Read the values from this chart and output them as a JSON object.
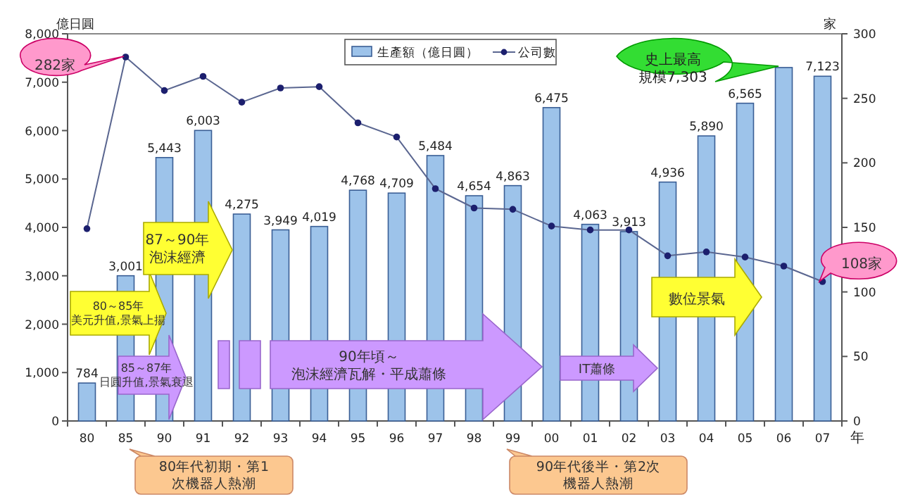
{
  "chart_data": {
    "type": "bar",
    "categories": [
      "80",
      "85",
      "90",
      "91",
      "92",
      "93",
      "94",
      "95",
      "96",
      "97",
      "98",
      "99",
      "00",
      "01",
      "02",
      "03",
      "04",
      "05",
      "06",
      "07"
    ],
    "series": [
      {
        "name": "生產額（億日圓）",
        "color": "#9dc3ea",
        "values": [
          784,
          3001,
          5443,
          6003,
          4275,
          3949,
          4019,
          4768,
          4709,
          5484,
          4654,
          4863,
          6475,
          4063,
          3913,
          4936,
          5890,
          6565,
          7303,
          7123
        ],
        "value_labels": [
          "784",
          "3,001",
          "5,443",
          "6,003",
          "4,275",
          "3,949",
          "4,019",
          "4,768",
          "4,709",
          "5,484",
          "4,654",
          "4,863",
          "6,475",
          "4,063",
          "3,913",
          "4,936",
          "5,890",
          "6,565",
          null,
          "7,123"
        ]
      },
      {
        "name": "公司數",
        "type": "line",
        "axis": "y2",
        "color": "#5a6690",
        "marker": "circle",
        "values": [
          149,
          282,
          256,
          267,
          247,
          258,
          259,
          231,
          220,
          180,
          165,
          164,
          151,
          148,
          148,
          128,
          131,
          127,
          120,
          108
        ]
      }
    ],
    "ylim": [
      0,
      8000
    ],
    "yticks": [
      0,
      {
        "value": 1000,
        "label": "1,000"
      },
      {
        "value": 2000,
        "label": "2,000"
      },
      {
        "value": 3000,
        "label": "3,000"
      },
      {
        "value": 4000,
        "label": "4,000"
      },
      {
        "value": 5000,
        "label": "5,000"
      },
      {
        "value": 6000,
        "label": "6,000"
      },
      {
        "value": 7000,
        "label": "7,000"
      },
      {
        "value": 8000,
        "label": "8,000"
      }
    ],
    "y2lim": [
      0,
      300
    ],
    "y2ticks": [
      0,
      50,
      100,
      150,
      200,
      250,
      300
    ],
    "ylabel": "億日圓",
    "y2label": "家",
    "xlabel": "年",
    "legend": "top",
    "annotations": [
      "282家",
      "108家",
      "史上最高規模7,303",
      "80～85年美元升值,景氣上揚",
      "85～87年日圓升值,景氣衰退",
      "87～90年泡沫經濟",
      "90年頃～泡沫經濟瓦解・平成蕭條",
      "IT蕭條",
      "數位景氣",
      "80年代初期・第1次機器人熱潮",
      "90年代後半・第2次機器人熱潮"
    ]
  }
}
